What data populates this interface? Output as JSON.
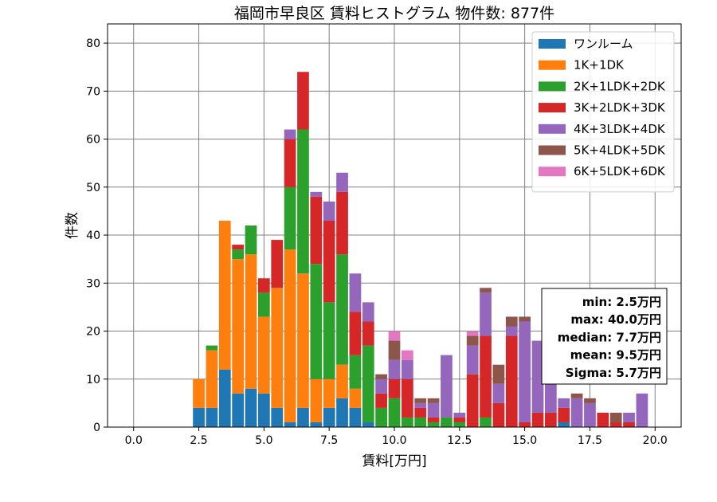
{
  "chart_data": {
    "type": "bar",
    "stacked": true,
    "title": "福岡市早良区 賃料ヒストグラム 物件数: 877件",
    "xlabel": "賃料[万円]",
    "ylabel": "件数",
    "xlim": [
      -1,
      21
    ],
    "ylim": [
      0,
      84
    ],
    "xticks": [
      0,
      2.5,
      5,
      7.5,
      10,
      12.5,
      15,
      17.5,
      20
    ],
    "xtick_labels": [
      "0.0",
      "2.5",
      "5.0",
      "7.5",
      "10.0",
      "12.5",
      "15.0",
      "17.5",
      "20.0"
    ],
    "yticks": [
      0,
      10,
      20,
      30,
      40,
      50,
      60,
      70,
      80
    ],
    "ytick_labels": [
      "0",
      "10",
      "20",
      "30",
      "40",
      "50",
      "60",
      "70",
      "80"
    ],
    "grid": true,
    "legend_position": "top-right",
    "bin_width": 0.5,
    "x": [
      2.5,
      3.0,
      3.5,
      4.0,
      4.5,
      5.0,
      5.5,
      6.0,
      6.5,
      7.0,
      7.5,
      8.0,
      8.5,
      9.0,
      9.5,
      10.0,
      10.5,
      11.0,
      11.5,
      12.0,
      12.5,
      13.0,
      13.5,
      14.0,
      14.5,
      15.0,
      15.5,
      16.0,
      16.5,
      17.0,
      17.5,
      18.0,
      18.5,
      19.0,
      19.5
    ],
    "series": [
      {
        "name": "ワンルーム",
        "color": "#1f77b4",
        "values": [
          4,
          4,
          12,
          7,
          8,
          7,
          4,
          1,
          4,
          1,
          4,
          6,
          4,
          1,
          0,
          0,
          0,
          0,
          0,
          0,
          0,
          0,
          0,
          0,
          0,
          0,
          0,
          0,
          1,
          0,
          0,
          0,
          0,
          0,
          0
        ]
      },
      {
        "name": "1K+1DK",
        "color": "#ff7f0e",
        "values": [
          6,
          12,
          31,
          28,
          28,
          16,
          25,
          36,
          28,
          9,
          6,
          7,
          4,
          0,
          0,
          0,
          0,
          0,
          0,
          0,
          0,
          0,
          0,
          0,
          0,
          0,
          0,
          0,
          0,
          0,
          0,
          0,
          0,
          0,
          0
        ]
      },
      {
        "name": "2K+1LDK+2DK",
        "color": "#2ca02c",
        "values": [
          0,
          1,
          0,
          2,
          6,
          5,
          0,
          13,
          30,
          24,
          16,
          23,
          7,
          16,
          4,
          6,
          2,
          2,
          1,
          2,
          1,
          0,
          2,
          0,
          0,
          0,
          0,
          0,
          0,
          0,
          0,
          0,
          0,
          0,
          0
        ]
      },
      {
        "name": "3K+2LDK+3DK",
        "color": "#d62728",
        "values": [
          0,
          0,
          0,
          1,
          0,
          3,
          10,
          10,
          12,
          14,
          17,
          13,
          9,
          5,
          3,
          4,
          8,
          2,
          1,
          0,
          1,
          11,
          17,
          5,
          19,
          1,
          3,
          3,
          3,
          0,
          0,
          3,
          1,
          1,
          0
        ]
      },
      {
        "name": "4K+3LDK+4DK",
        "color": "#9467bd",
        "values": [
          0,
          0,
          0,
          0,
          0,
          0,
          0,
          2,
          0,
          1,
          4,
          4,
          8,
          4,
          3,
          4,
          4,
          1,
          3,
          13,
          1,
          6,
          9,
          4,
          2,
          21,
          15,
          18,
          2,
          6,
          5,
          0,
          0,
          2,
          7
        ]
      },
      {
        "name": "5K+4LDK+5DK",
        "color": "#8c564b",
        "values": [
          0,
          0,
          0,
          0,
          0,
          0,
          0,
          0,
          0,
          0,
          0,
          0,
          0,
          0,
          1,
          4,
          0,
          1,
          1,
          0,
          0,
          2,
          1,
          4,
          2,
          1,
          0,
          0,
          0,
          1,
          1,
          0,
          2,
          0,
          0
        ]
      },
      {
        "name": "6K+5LDK+6DK",
        "color": "#e377c2",
        "values": [
          0,
          0,
          0,
          0,
          0,
          0,
          0,
          0,
          0,
          0,
          0,
          0,
          0,
          0,
          0,
          2,
          2,
          0,
          0,
          0,
          0,
          1,
          0,
          0,
          0,
          0,
          0,
          0,
          0,
          0,
          0,
          0,
          0,
          0,
          0
        ]
      }
    ],
    "annotation": [
      "min: 2.5万円",
      "max: 40.0万円",
      "median: 7.7万円",
      "mean: 9.5万円",
      "Sigma: 5.7万円"
    ]
  }
}
